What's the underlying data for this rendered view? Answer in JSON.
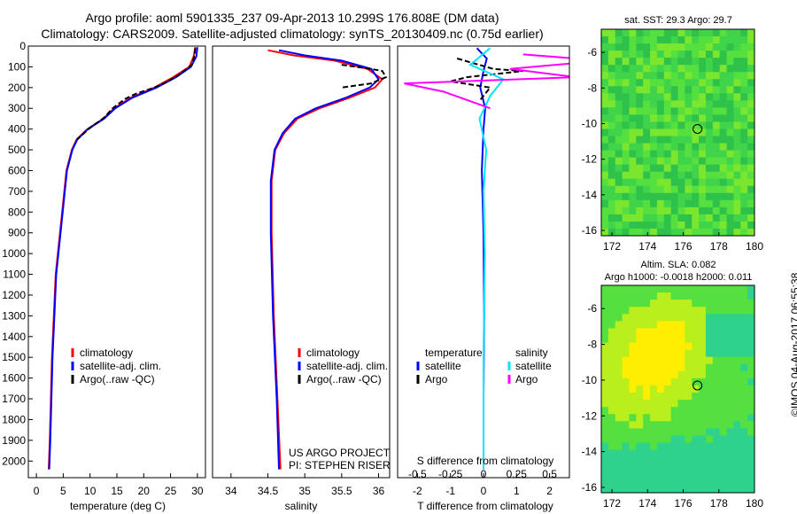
{
  "header": {
    "title_line1": "Argo profile: aoml 5901335_237 09-Apr-2013 10.299S 176.808E (DM data)",
    "title_line2": "Climatology: CARS2009. Satellite-adjusted climatology: synTS_20130409.nc (0.75d earlier)"
  },
  "footer": {
    "credit": "©IMOS 04-Aug-2017 06:55:38",
    "project_line1": "US ARGO PROJECT",
    "project_line2": "PI: STEPHEN RISER"
  },
  "colors": {
    "climatology": "#ff0000",
    "satellite": "#0000ff",
    "argo": "#000000",
    "salinity_satellite": "#00e5ff",
    "salinity_argo": "#ff00ff"
  },
  "chart_data": [
    {
      "type": "line",
      "xlabel": "temperature (deg C)",
      "ylabel": "",
      "xlim": [
        -1.5,
        31.5
      ],
      "ylim": [
        2080,
        0
      ],
      "xticks": [
        "0",
        "5",
        "10",
        "15",
        "20",
        "25",
        "30"
      ],
      "yticks": [
        "0",
        "100",
        "200",
        "300",
        "400",
        "500",
        "600",
        "700",
        "800",
        "900",
        "1000",
        "1100",
        "1200",
        "1300",
        "1400",
        "1500",
        "1600",
        "1700",
        "1800",
        "1900",
        "2000"
      ],
      "legend": [
        "climatology",
        "satellite-adj. clim.",
        "Argo(..raw -QC)"
      ],
      "legend_position": "lower-left",
      "series": [
        {
          "name": "climatology",
          "color": "#ff0000",
          "x": [
            29.6,
            29.3,
            28.5,
            25.5,
            22.0,
            17.5,
            14.5,
            12.5,
            9.5,
            7.5,
            6.6,
            5.6,
            4.8,
            3.6,
            2.9,
            2.5,
            2.3
          ],
          "y": [
            5,
            50,
            100,
            150,
            200,
            250,
            300,
            350,
            400,
            450,
            500,
            600,
            800,
            1100,
            1500,
            1900,
            2040
          ]
        },
        {
          "name": "satellite-adj. clim.",
          "color": "#0000ff",
          "x": [
            30.0,
            29.8,
            28.8,
            26.0,
            22.4,
            17.8,
            14.7,
            12.6,
            9.6,
            7.6,
            6.7,
            5.7,
            4.9,
            3.7,
            3.0,
            2.6,
            2.4
          ],
          "y": [
            5,
            50,
            100,
            150,
            200,
            250,
            300,
            350,
            400,
            450,
            500,
            600,
            800,
            1100,
            1500,
            1900,
            2040
          ]
        },
        {
          "name": "Argo(..raw -QC)",
          "color": "#000000",
          "x": [
            29.6,
            29.5,
            29.0,
            26.5,
            24.5,
            22.0,
            18.5,
            16.5,
            14.2,
            12.6,
            9.7,
            7.6
          ],
          "y": [
            10,
            40,
            90,
            140,
            170,
            200,
            230,
            255,
            300,
            345,
            400,
            450
          ]
        }
      ]
    },
    {
      "type": "line",
      "xlabel": "salinity",
      "ylabel": "",
      "xlim": [
        33.75,
        36.15
      ],
      "ylim": [
        2080,
        0
      ],
      "xticks": [
        "34",
        "34.5",
        "35",
        "35.5",
        "36"
      ],
      "legend": [
        "climatology",
        "satellite-adj. clim.",
        "Argo(..raw -QC)"
      ],
      "legend_position": "lower-right",
      "series": [
        {
          "name": "climatology",
          "color": "#ff0000",
          "x": [
            34.5,
            34.85,
            35.4,
            35.85,
            36.05,
            35.95,
            35.6,
            35.2,
            34.9,
            34.72,
            34.6,
            34.55,
            34.55,
            34.58,
            34.63,
            34.67
          ],
          "y": [
            20,
            45,
            70,
            110,
            160,
            200,
            250,
            300,
            350,
            420,
            500,
            650,
            900,
            1300,
            1700,
            2040
          ]
        },
        {
          "name": "satellite-adj. clim.",
          "color": "#0000ff",
          "x": [
            34.65,
            35.0,
            35.5,
            35.9,
            36.0,
            35.88,
            35.55,
            35.15,
            34.87,
            34.7,
            34.59,
            34.54,
            34.54,
            34.57,
            34.62,
            34.65
          ],
          "y": [
            20,
            45,
            70,
            110,
            160,
            200,
            250,
            300,
            350,
            420,
            500,
            650,
            900,
            1300,
            1700,
            2040
          ]
        },
        {
          "name": "Argo(..raw -QC)",
          "color": "#000000",
          "x": [
            35.5,
            35.9,
            36.05,
            36.1,
            35.9,
            35.5
          ],
          "y": [
            90,
            110,
            120,
            150,
            180,
            200
          ]
        }
      ]
    },
    {
      "type": "line",
      "xlabel": "T difference from climatology",
      "xlabel2": "S difference from climatology",
      "ylabel": "",
      "xlim": [
        -2.6,
        2.6
      ],
      "x2lim": [
        -0.65,
        0.65
      ],
      "ylim": [
        2080,
        0
      ],
      "xticks": [
        "-2",
        "-1",
        "0",
        "1",
        "2"
      ],
      "x2ticks": [
        "-0.5",
        "-0.25",
        "0",
        "0.25",
        "0.5"
      ],
      "legend": [
        "temperature",
        "satellite",
        "Argo",
        "salinity",
        "satellite",
        "Argo"
      ],
      "legend_position": "lower-center",
      "series": [
        {
          "name": "satellite",
          "quantity": "temperature",
          "color": "#0000ff",
          "x": [
            -0.2,
            0.1,
            0.0,
            -0.1,
            0.05,
            0.0,
            -0.05,
            0.0,
            0.02,
            0.0,
            0.0
          ],
          "y": [
            10,
            60,
            120,
            200,
            300,
            400,
            600,
            900,
            1300,
            1700,
            2040
          ]
        },
        {
          "name": "Argo",
          "quantity": "temperature",
          "color": "#000000",
          "x": [
            -0.8,
            0.3,
            1.2,
            -0.5,
            -1.0,
            0.2,
            -0.1
          ],
          "y": [
            60,
            110,
            120,
            150,
            170,
            200,
            260
          ]
        },
        {
          "name": "satellite",
          "quantity": "salinity",
          "color": "#00e5ff",
          "x": [
            0.05,
            -0.1,
            0.15,
            0.05,
            -0.03,
            0.02,
            0.0,
            0.01,
            0.0,
            0.0
          ],
          "y": [
            10,
            90,
            160,
            240,
            350,
            500,
            700,
            1000,
            1500,
            2040
          ]
        },
        {
          "name": "Argo",
          "quantity": "salinity",
          "color": "#ff00ff",
          "x": [
            0.3,
            0.9,
            0.2,
            0.7,
            -0.6,
            -0.3,
            0.05
          ],
          "y": [
            40,
            70,
            110,
            150,
            180,
            220,
            300
          ]
        }
      ]
    },
    {
      "type": "heatmap",
      "title": "sat. SST: 29.3 Argo: 29.7",
      "xlim": [
        171.4,
        180.0
      ],
      "ylim": [
        -16.3,
        -4.7
      ],
      "xticks": [
        "172",
        "174",
        "176",
        "178",
        "180"
      ],
      "yticks": [
        "-6",
        "-8",
        "-10",
        "-12",
        "-14",
        "-16"
      ],
      "marker": {
        "lon": 176.8,
        "lat": -10.3
      },
      "palette": [
        "#2ec24a",
        "#3fd44a",
        "#55e040",
        "#7ae62e"
      ]
    },
    {
      "type": "heatmap",
      "title": "Altim. SLA: 0.082",
      "subtitle": "Argo h1000: -0.0018 h2000: 0.011",
      "xlim": [
        171.4,
        180.0
      ],
      "ylim": [
        -16.3,
        -4.7
      ],
      "xticks": [
        "172",
        "174",
        "176",
        "178",
        "180"
      ],
      "yticks": [
        "-6",
        "-8",
        "-10",
        "-12",
        "-14",
        "-16"
      ],
      "marker": {
        "lon": 176.8,
        "lat": -10.3
      },
      "palette": [
        "#2fd28c",
        "#55e040",
        "#b8ef1c",
        "#ffee00"
      ]
    }
  ]
}
